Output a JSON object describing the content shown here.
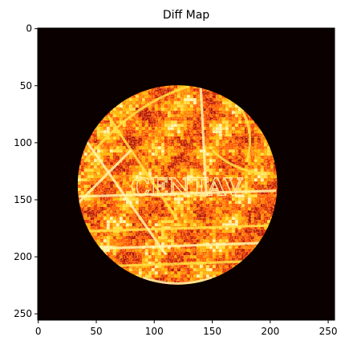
{
  "chart_data": {
    "type": "heatmap",
    "title": "Diff Map",
    "xlabel": "",
    "ylabel": "",
    "xlim": [
      0,
      255
    ],
    "ylim": [
      255,
      0
    ],
    "x_ticks": [
      0,
      50,
      100,
      150,
      200,
      250
    ],
    "y_ticks": [
      0,
      50,
      100,
      150,
      200,
      250
    ],
    "x_tick_labels": [
      "0",
      "50",
      "100",
      "150",
      "200",
      "250"
    ],
    "y_tick_labels": [
      "0",
      "50",
      "100",
      "150",
      "200",
      "250"
    ],
    "colormap": "hot",
    "background_color": "#0a0000",
    "grid": false,
    "image_content": {
      "shape": "circle",
      "center": [
        120,
        137
      ],
      "radius": 86,
      "palette": [
        "#b30000",
        "#e02000",
        "#ff4a00",
        "#ff7a00",
        "#ffb000",
        "#ffe040",
        "#fffac0"
      ],
      "visible_text_in_image": "CENTAV"
    }
  }
}
